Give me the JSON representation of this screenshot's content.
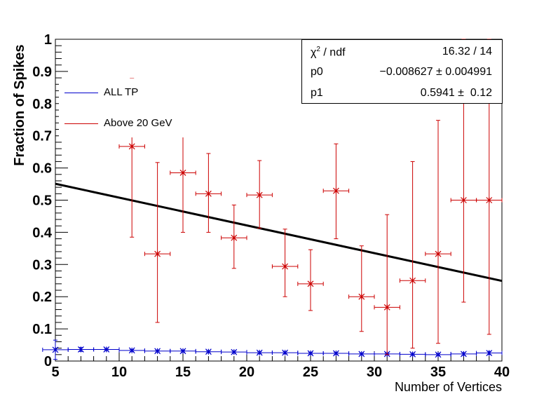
{
  "chart_data": {
    "type": "scatter",
    "title": "",
    "xlabel": "Number of Vertices",
    "ylabel": "Fraction of Spikes",
    "xlim": [
      5,
      40
    ],
    "ylim": [
      0,
      1
    ],
    "x_ticks": [
      "5",
      "10",
      "15",
      "20",
      "25",
      "30",
      "35",
      "40"
    ],
    "y_ticks": [
      "0",
      "0.1",
      "0.2",
      "0.3",
      "0.4",
      "0.5",
      "0.6",
      "0.7",
      "0.8",
      "0.9",
      "1"
    ],
    "grid": false,
    "legend_position": "top-left",
    "series": [
      {
        "name": "ALL TP",
        "color": "#0000cc",
        "marker": "star",
        "x": [
          5,
          7,
          9,
          11,
          13,
          15,
          17,
          19,
          21,
          23,
          25,
          27,
          29,
          31,
          33,
          35,
          37,
          39
        ],
        "y": [
          0.035,
          0.036,
          0.036,
          0.033,
          0.031,
          0.031,
          0.029,
          0.028,
          0.026,
          0.026,
          0.024,
          0.024,
          0.022,
          0.022,
          0.021,
          0.02,
          0.022,
          0.025
        ],
        "y_err": [
          0.03,
          0.006,
          0.003,
          0.003,
          0.003,
          0.003,
          0.003,
          0.003,
          0.003,
          0.003,
          0.003,
          0.003,
          0.003,
          0.003,
          0.003,
          0.003,
          0.004,
          0.005
        ],
        "x_err": 1
      },
      {
        "name": "Above 20 GeV",
        "color": "#cc0000",
        "marker": "star",
        "x": [
          11,
          13,
          15,
          17,
          19,
          21,
          23,
          25,
          27,
          29,
          31,
          33,
          35,
          37,
          39
        ],
        "y": [
          0.667,
          0.333,
          0.585,
          0.52,
          0.383,
          0.516,
          0.294,
          0.24,
          0.529,
          0.2,
          0.167,
          0.25,
          0.333,
          0.5,
          0.5
        ],
        "y_lo": [
          0.385,
          0.12,
          0.4,
          0.4,
          0.288,
          0.413,
          0.2,
          0.157,
          0.38,
          0.092,
          0.02,
          0.04,
          0.055,
          0.183,
          0.083
        ],
        "y_hi": [
          0.878,
          0.617,
          0.74,
          0.645,
          0.485,
          0.623,
          0.41,
          0.346,
          0.675,
          0.358,
          0.455,
          0.62,
          0.748,
          1.0,
          1.0
        ],
        "x_err": 1
      }
    ],
    "fit": {
      "color": "#000000",
      "p0": -0.008627,
      "p1": 0.5941,
      "x_range": [
        5,
        40
      ]
    }
  },
  "stats": {
    "chi_label": "χ",
    "chi_sup": "2",
    "chi_rest": " / ndf",
    "chi_value": "16.32 / 14",
    "p0_label": "p0",
    "p0_value": "−0.008627 ± 0.004991",
    "p1_label": "p1",
    "p1_value": "0.5941 ±  0.12"
  },
  "legend": {
    "entry1": "ALL TP",
    "entry2": "Above 20 GeV"
  }
}
